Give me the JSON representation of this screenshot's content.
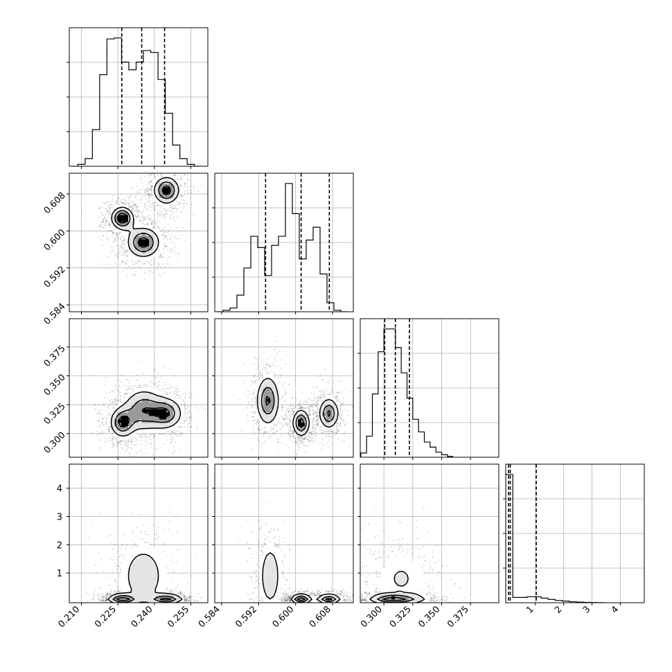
{
  "chart_data": {
    "type": "corner",
    "colors": {
      "axes": "#000000",
      "grid": "#b0b0b0",
      "points": "#000000",
      "hist": "#000000",
      "quantile_line": "#000000",
      "density_dark": "#000000",
      "density_mid": "#9a9a9a"
    },
    "parameters": [
      {
        "range": [
          0.205,
          0.262
        ],
        "ticks": [
          0.21,
          0.225,
          0.24,
          0.255
        ],
        "tick_labels": [
          "0.210",
          "0.225",
          "0.240",
          "0.255"
        ],
        "quantiles": [
          0.2266,
          0.2348,
          0.2442
        ],
        "histogram": {
          "bin_edges": [
            0.2055,
            0.2085,
            0.2115,
            0.2145,
            0.2175,
            0.2205,
            0.2235,
            0.2265,
            0.2295,
            0.2325,
            0.2355,
            0.2385,
            0.2415,
            0.2445,
            0.2475,
            0.2505,
            0.2535,
            0.2565,
            0.2595
          ],
          "counts": [
            0,
            0.02,
            0.08,
            0.38,
            0.95,
            1.32,
            1.33,
            1.08,
            1.0,
            1.08,
            1.2,
            1.18,
            0.9,
            0.55,
            0.22,
            0.08,
            0.02,
            0
          ]
        }
      },
      {
        "range": [
          0.5825,
          0.6125
        ],
        "ticks": [
          0.584,
          0.592,
          0.6,
          0.608
        ],
        "tick_labels": [
          "0.584",
          "0.592",
          "0.600",
          "0.608"
        ],
        "quantiles": [
          0.5935,
          0.6012,
          0.6073
        ],
        "histogram": {
          "bin_edges": [
            0.5828,
            0.5843,
            0.5858,
            0.5873,
            0.5888,
            0.5903,
            0.5918,
            0.5933,
            0.5948,
            0.5963,
            0.5978,
            0.5993,
            0.6008,
            0.6023,
            0.6038,
            0.6053,
            0.6068,
            0.6083,
            0.6098,
            0.6113
          ],
          "counts": [
            0,
            0.02,
            0.05,
            0.22,
            0.58,
            1.0,
            0.85,
            0.48,
            0.88,
            1.0,
            1.7,
            1.3,
            0.7,
            0.95,
            1.12,
            0.5,
            0.12,
            0.02,
            0
          ]
        }
      },
      {
        "range": [
          0.2795,
          0.3995
        ],
        "ticks": [
          0.3,
          0.325,
          0.35,
          0.375
        ],
        "tick_labels": [
          "0.300",
          "0.325",
          "0.350",
          "0.375"
        ],
        "quantiles": [
          0.3007,
          0.3099,
          0.3221
        ],
        "histogram": {
          "bin_edges": [
            0.28,
            0.285,
            0.29,
            0.295,
            0.3,
            0.305,
            0.31,
            0.315,
            0.32,
            0.325,
            0.33,
            0.335,
            0.34,
            0.345,
            0.35,
            0.355,
            0.36
          ],
          "counts": [
            0.05,
            0.25,
            0.75,
            1.25,
            1.52,
            1.52,
            1.3,
            1.0,
            0.7,
            0.45,
            0.3,
            0.18,
            0.12,
            0.06,
            0.03,
            0.01
          ]
        }
      },
      {
        "range": [
          -0.05,
          4.85
        ],
        "ticks": [
          1,
          2,
          3,
          4
        ],
        "tick_labels": [
          "1",
          "2",
          "3",
          "4"
        ],
        "quantiles": [
          0.05,
          0.11,
          1.03
        ],
        "histogram": {
          "bin_edges": [
            -0.05,
            0.2,
            0.45,
            0.7,
            0.95,
            1.2,
            1.45,
            1.7,
            1.95,
            2.2,
            2.45,
            2.7,
            2.95,
            3.2,
            3.45
          ],
          "counts": [
            1.95,
            0.08,
            0.08,
            0.09,
            0.09,
            0.07,
            0.05,
            0.035,
            0.025,
            0.015,
            0.01,
            0.006,
            0.003,
            0.001
          ]
        }
      }
    ],
    "pairs": [
      {
        "col": 0,
        "row": 1,
        "modes": [
          {
            "center": [
              0.2268,
              0.6028
            ],
            "sigma": [
              0.003,
              0.0016
            ],
            "weight": 1.0,
            "rho": 0.0
          },
          {
            "center": [
              0.245,
              0.6088
            ],
            "sigma": [
              0.0036,
              0.002
            ],
            "weight": 0.9,
            "rho": 0.0
          },
          {
            "center": [
              0.2355,
              0.5975
            ],
            "sigma": [
              0.0045,
              0.0022
            ],
            "weight": 0.9,
            "rho": 0.0
          }
        ],
        "contour_levels": [
          0.35,
          0.6,
          0.8
        ]
      },
      {
        "col": 0,
        "row": 2,
        "modes": [
          {
            "center": [
              0.2268,
              0.3095
            ],
            "sigma": [
              0.003,
              0.0075
            ],
            "weight": 1.0,
            "rho": 0.0
          },
          {
            "center": [
              0.245,
              0.3175
            ],
            "sigma": [
              0.004,
              0.008
            ],
            "weight": 0.9,
            "rho": 0.0
          },
          {
            "center": [
              0.2355,
              0.3205
            ],
            "sigma": [
              0.005,
              0.011
            ],
            "weight": 0.9,
            "rho": 0.0
          }
        ],
        "contour_levels": [
          0.3,
          0.6,
          0.85
        ]
      },
      {
        "col": 1,
        "row": 2,
        "modes": [
          {
            "center": [
              0.6012,
              0.3092
            ],
            "sigma": [
              0.0011,
              0.007
            ],
            "weight": 1.0,
            "rho": 0.0
          },
          {
            "center": [
              0.6072,
              0.3175
            ],
            "sigma": [
              0.0013,
              0.008
            ],
            "weight": 0.9,
            "rho": 0.0
          },
          {
            "center": [
              0.594,
              0.3285
            ],
            "sigma": [
              0.0015,
              0.013
            ],
            "weight": 0.9,
            "rho": 0.0
          }
        ],
        "contour_levels": [
          0.3,
          0.6,
          0.85
        ]
      },
      {
        "col": 0,
        "row": 3,
        "modes": [
          {
            "center": [
              0.2268,
              0.08
            ],
            "sigma": [
              0.0035,
              0.1
            ],
            "weight": 1.0,
            "rho": 0.0
          },
          {
            "center": [
              0.245,
              0.08
            ],
            "sigma": [
              0.004,
              0.1
            ],
            "weight": 0.9,
            "rho": 0.0
          },
          {
            "center": [
              0.2355,
              0.9
            ],
            "sigma": [
              0.006,
              0.75
            ],
            "weight": 0.45,
            "rho": 0.0
          }
        ],
        "contour_levels": [
          0.25,
          0.55,
          0.8
        ]
      },
      {
        "col": 1,
        "row": 3,
        "modes": [
          {
            "center": [
              0.6012,
              0.08
            ],
            "sigma": [
              0.0013,
              0.1
            ],
            "weight": 1.0,
            "rho": 0.0
          },
          {
            "center": [
              0.6072,
              0.08
            ],
            "sigma": [
              0.0015,
              0.1
            ],
            "weight": 0.9,
            "rho": 0.0
          },
          {
            "center": [
              0.5945,
              0.9
            ],
            "sigma": [
              0.0015,
              0.75
            ],
            "weight": 0.45,
            "rho": 0.0
          }
        ],
        "contour_levels": [
          0.25,
          0.55,
          0.8
        ]
      },
      {
        "col": 2,
        "row": 3,
        "modes": [
          {
            "center": [
              0.303,
              0.08
            ],
            "sigma": [
              0.01,
              0.1
            ],
            "weight": 1.0,
            "rho": 0.0
          },
          {
            "center": [
              0.318,
              0.08
            ],
            "sigma": [
              0.012,
              0.1
            ],
            "weight": 0.8,
            "rho": 0.0
          },
          {
            "center": [
              0.315,
              0.8
            ],
            "sigma": [
              0.016,
              0.7
            ],
            "weight": 0.45,
            "rho": 0.0
          }
        ],
        "contour_levels": [
          0.25,
          0.55,
          0.8
        ]
      }
    ],
    "legend": "none",
    "grid": true,
    "title": "",
    "axis_labels": []
  }
}
